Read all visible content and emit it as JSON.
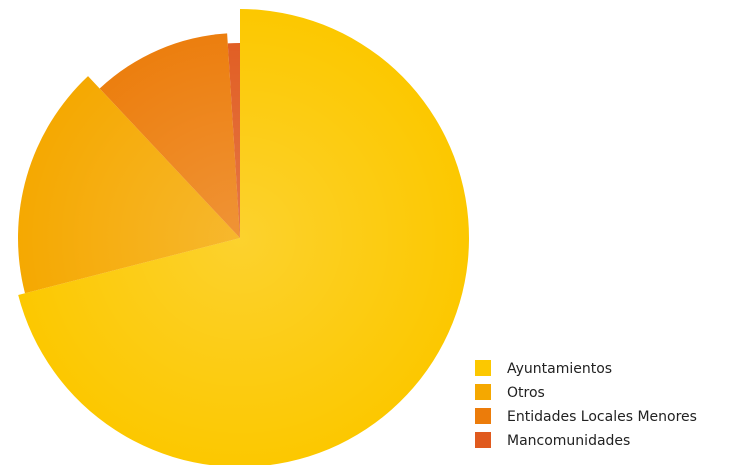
{
  "chart_data": {
    "type": "pie",
    "categories": [
      "Ayuntamientos",
      "Otros",
      "Entidades Locales Menores",
      "Mancomunidades"
    ],
    "values": [
      71,
      17,
      11,
      1
    ],
    "colors": [
      "#fcc800",
      "#f5a800",
      "#ec7c0a",
      "#e05a1e"
    ],
    "legend": "bottom-right"
  }
}
